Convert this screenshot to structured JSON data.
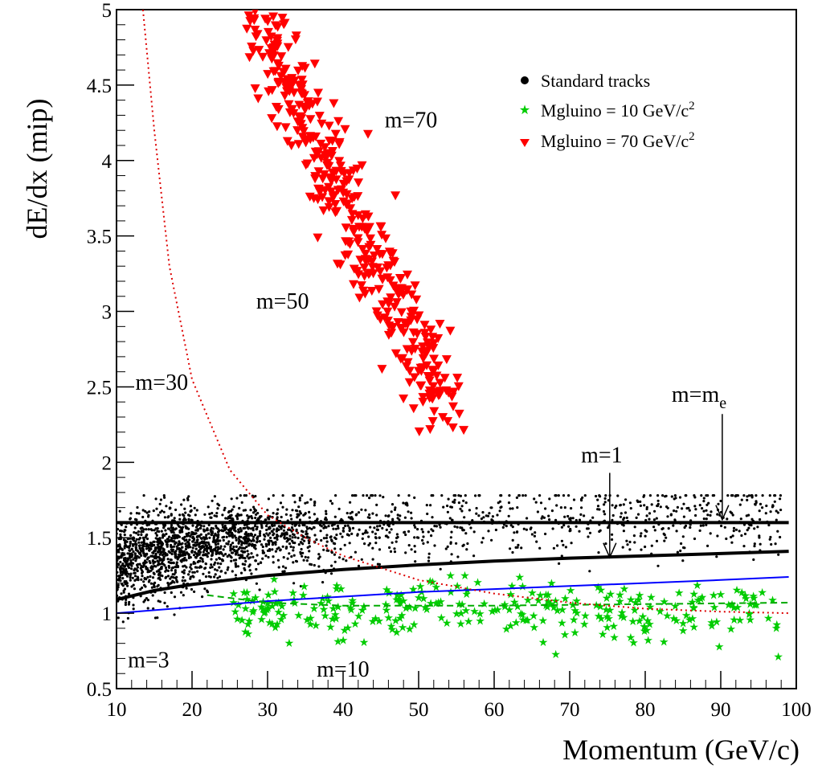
{
  "chart_data": {
    "type": "scatter",
    "title": "",
    "xlabel": "Momentum (GeV/c)",
    "ylabel": "dE/dx (mip)",
    "xlim": [
      10,
      100
    ],
    "ylim": [
      0.5,
      5
    ],
    "grid": false,
    "legend_position": "top-right",
    "x_ticks": [
      10,
      20,
      30,
      40,
      50,
      60,
      70,
      80,
      90,
      100
    ],
    "y_ticks": [
      0.5,
      1,
      1.5,
      2,
      2.5,
      3,
      3.5,
      4,
      4.5,
      5
    ],
    "x_tick_labels": [
      "10",
      "20",
      "30",
      "40",
      "50",
      "60",
      "70",
      "80",
      "90",
      "100"
    ],
    "y_tick_labels": [
      "0.5",
      "1",
      "1.5",
      "2",
      "2.5",
      "3",
      "3.5",
      "4",
      "4.5",
      "5"
    ],
    "legend": [
      {
        "label": "Standard tracks",
        "sup": "",
        "marker": "dot",
        "color": "#000000"
      },
      {
        "label": "Mgluino = 10 GeV/c",
        "sup": "2",
        "marker": "star",
        "color": "#00cc00"
      },
      {
        "label": "Mgluino = 70 GeV/c",
        "sup": "2",
        "marker": "triangle-down",
        "color": "#ff0000"
      }
    ],
    "curves": [
      {
        "name": "m=me",
        "style": "solid",
        "color": "#000000",
        "width": "thick",
        "points": [
          [
            10,
            1.6
          ],
          [
            20,
            1.6
          ],
          [
            40,
            1.6
          ],
          [
            60,
            1.6
          ],
          [
            80,
            1.6
          ],
          [
            99,
            1.6
          ]
        ]
      },
      {
        "name": "m=1",
        "style": "solid",
        "color": "#000000",
        "width": "thick",
        "points": [
          [
            10,
            1.09
          ],
          [
            15,
            1.15
          ],
          [
            20,
            1.19
          ],
          [
            30,
            1.25
          ],
          [
            40,
            1.29
          ],
          [
            50,
            1.32
          ],
          [
            60,
            1.345
          ],
          [
            70,
            1.365
          ],
          [
            80,
            1.38
          ],
          [
            90,
            1.395
          ],
          [
            99,
            1.41
          ]
        ]
      },
      {
        "name": "m=3",
        "style": "solid",
        "color": "#0000ff",
        "width": "thin",
        "points": [
          [
            10,
            1.0
          ],
          [
            20,
            1.04
          ],
          [
            30,
            1.08
          ],
          [
            40,
            1.11
          ],
          [
            50,
            1.14
          ],
          [
            60,
            1.16
          ],
          [
            70,
            1.18
          ],
          [
            80,
            1.2
          ],
          [
            90,
            1.22
          ],
          [
            99,
            1.24
          ]
        ]
      },
      {
        "name": "m=10",
        "style": "dashed",
        "color": "#00aa00",
        "width": "thin",
        "points": [
          [
            22,
            1.12
          ],
          [
            30,
            1.07
          ],
          [
            40,
            1.05
          ],
          [
            60,
            1.05
          ],
          [
            80,
            1.06
          ],
          [
            99,
            1.07
          ]
        ]
      },
      {
        "name": "m=30",
        "style": "dotted",
        "color": "#dd0000",
        "width": "thin",
        "points": [
          [
            13.5,
            5.0
          ],
          [
            15,
            4.2
          ],
          [
            17,
            3.3
          ],
          [
            20,
            2.55
          ],
          [
            25,
            1.95
          ],
          [
            30,
            1.65
          ],
          [
            35,
            1.5
          ],
          [
            40,
            1.38
          ],
          [
            50,
            1.22
          ],
          [
            60,
            1.13
          ],
          [
            70,
            1.07
          ],
          [
            80,
            1.03
          ],
          [
            90,
            1.01
          ],
          [
            99,
            1.0
          ]
        ]
      }
    ],
    "annotations": [
      {
        "text": "m=70",
        "x": 45.5,
        "y": 4.22
      },
      {
        "text": "m=50",
        "x": 28.5,
        "y": 3.02
      },
      {
        "text": "m=30",
        "x": 12.5,
        "y": 2.48
      },
      {
        "text": "m=3",
        "x": 11.5,
        "y": 0.64
      },
      {
        "text": "m=10",
        "x": 36.5,
        "y": 0.58
      },
      {
        "text": "m=1",
        "x": 71.5,
        "y": 2.0
      },
      {
        "text": "m=m",
        "sub": "e",
        "x": 83.5,
        "y": 2.4
      }
    ],
    "arrows": [
      {
        "label": "m=1",
        "from": [
          75.3,
          1.93
        ],
        "to": [
          75.3,
          1.37
        ]
      },
      {
        "label": "m=me",
        "from": [
          90.2,
          2.32
        ],
        "to": [
          90.2,
          1.62
        ]
      }
    ],
    "series": [
      {
        "name": "Standard tracks",
        "marker": "dot",
        "color": "#000000",
        "generated": {
          "count": 2400,
          "x_range": [
            10,
            98
          ],
          "y_range": [
            0.93,
            1.78
          ],
          "concentration": "low-momentum"
        }
      },
      {
        "name": "Mgluino = 10 GeV/c2",
        "marker": "star",
        "color": "#00cc00",
        "generated": {
          "count": 290,
          "x_range": [
            25,
            98
          ],
          "y_center": 1.03,
          "y_spread": 0.09,
          "y_range": [
            0.7,
            1.25
          ]
        }
      },
      {
        "name": "Mgluino = 70 GeV/c2",
        "marker": "triangle-down",
        "color": "#ff0000",
        "generated": {
          "count": 420,
          "band": [
            [
              28,
              5.0
            ],
            [
              54,
              2.3
            ]
          ],
          "y_range": [
            2.2,
            5.0
          ]
        }
      }
    ]
  }
}
